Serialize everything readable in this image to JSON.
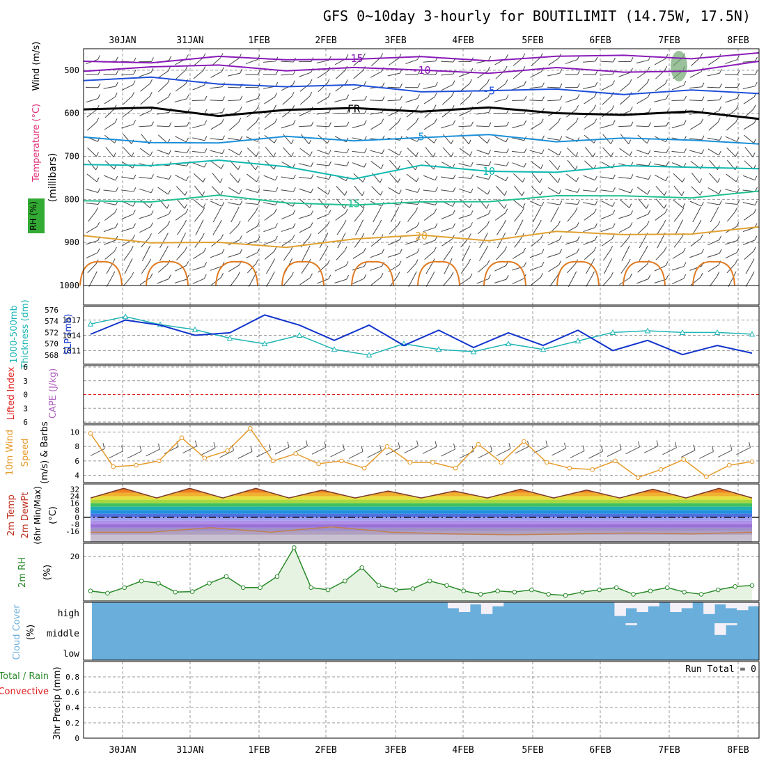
{
  "chart_data": {
    "type": "line",
    "title": "GFS 0~10day 3-hourly for BOUTILIMIT (14.75W, 17.5N)",
    "dates": [
      "30JAN",
      "31JAN",
      "1FEB",
      "2FEB",
      "3FEB",
      "4FEB",
      "5FEB",
      "6FEB",
      "7FEB",
      "8FEB"
    ],
    "colors": {
      "axis": "#000000",
      "grid": "#999999",
      "slp": "#1133cc",
      "thickness": "#1fb5b5",
      "wind": "#e69a2a",
      "rh": "#2a8a2a",
      "cloud": "#6aaedb",
      "lifted": "#e02020",
      "purple": "#8a1ab8"
    },
    "panels": {
      "upper": {
        "ylabel": "(millibars)",
        "labels": [
          "Wind (m/s)",
          "Temperature (°C)",
          "RH (%)"
        ],
        "yticks": [
          500,
          600,
          700,
          800,
          900,
          1000
        ],
        "ylim": [
          450,
          1000
        ],
        "isotherms": [
          {
            "label": "-15",
            "color": "#8a1ab8",
            "p": [
              479,
              478,
              474,
              472,
              473,
              474,
              472,
              470,
              468,
              467,
              465
            ]
          },
          {
            "label": "-10",
            "color": "#8a1ab8",
            "p": [
              497,
              493,
              492,
              495,
              498,
              500,
              502,
              500,
              501,
              500,
              485
            ]
          },
          {
            "label": "-5",
            "color": "#1f4fd8",
            "p": [
              518,
              522,
              530,
              535,
              540,
              545,
              548,
              548,
              550,
              550,
              555
            ]
          },
          {
            "label": "FR",
            "color": "#000000",
            "p": [
              590,
              592,
              600,
              595,
              590,
              590,
              592,
              598,
              600,
              602,
              608
            ]
          },
          {
            "label": "5",
            "color": "#1a8fd8",
            "p": [
              660,
              668,
              664,
              660,
              660,
              655,
              655,
              660,
              660,
              665,
              665
            ]
          },
          {
            "label": "10",
            "color": "#10b8b0",
            "p": [
              725,
              716,
              710,
              728,
              746,
              725,
              735,
              732,
              728,
              722,
              727
            ]
          },
          {
            "label": "15",
            "color": "#20c090",
            "p": [
              805,
              800,
              796,
              806,
              810,
              812,
              800,
              792,
              796,
              790,
              785
            ]
          },
          {
            "label": "20",
            "color": "#e0a030",
            "p": [
              880,
              900,
              905,
              905,
              895,
              885,
              890,
              880,
              880,
              877,
              870
            ]
          }
        ]
      },
      "slp": {
        "labels": [
          "SLP (mb)",
          "1000-500mb",
          "Thickness (dm)"
        ],
        "thickness_ticks": [
          568,
          570,
          572,
          574,
          576
        ],
        "slp_ticks": [
          1011,
          1014,
          1017
        ],
        "slp_range": [
          1009,
          1019
        ],
        "thickness_range": [
          567,
          576
        ],
        "slp": [
          1014.2,
          1017,
          1016,
          1014,
          1014.5,
          1018,
          1016,
          1013,
          1016,
          1012,
          1015,
          1011.6,
          1014.5,
          1012,
          1015,
          1011,
          1013,
          1010.2,
          1012,
          1010.5
        ],
        "thickness": [
          573.5,
          574.8,
          573.4,
          572.5,
          571,
          570,
          571.5,
          569,
          568,
          570,
          569,
          568.6,
          570,
          569,
          570.5,
          572,
          572.3,
          572,
          572,
          571.7
        ]
      },
      "cape": {
        "labels": [
          "Lifted Index",
          "CAPE (J/kg)"
        ],
        "yticks": [
          6,
          3,
          0,
          -3,
          -6
        ],
        "ylim": [
          -6,
          6
        ]
      },
      "wind10m": {
        "labels": [
          "10m Wind",
          "Speed",
          "(m/s) & Barbs"
        ],
        "yticks": [
          4,
          6,
          8,
          10
        ],
        "ylim": [
          3,
          11
        ],
        "speed": [
          9.8,
          5.2,
          5.4,
          6,
          9.2,
          6.4,
          7.4,
          10.5,
          6,
          7,
          5.6,
          6,
          5,
          8,
          5.8,
          5.8,
          5,
          8.3,
          5.8,
          8.7,
          5.8,
          5,
          4.8,
          6,
          3.7,
          4.8,
          6.2,
          3.8,
          5.4,
          5.9
        ]
      },
      "temp2m": {
        "labels": [
          "2m Temp",
          "2m DewPt",
          "(6hr Min/Max)",
          "(°C)"
        ],
        "yticks": [
          32,
          24,
          16,
          8,
          0,
          -8,
          -16
        ],
        "ylim": [
          -28,
          38
        ],
        "temp": [
          22,
          33,
          22,
          33,
          22,
          33,
          22,
          31,
          22,
          30,
          22,
          30,
          22,
          32,
          22,
          31,
          22,
          32,
          22,
          33,
          22
        ],
        "dewpt": [
          -17,
          -17,
          -12,
          -17,
          -11,
          -17,
          -19,
          -20,
          -19,
          -18,
          -19,
          -17
        ]
      },
      "rh2m": {
        "labels": [
          "2m RH",
          "(%)"
        ],
        "yticks": [
          20
        ],
        "ylim": [
          0,
          26
        ],
        "rh": [
          4.5,
          3.5,
          6,
          9,
          8,
          4,
          4.2,
          8,
          11,
          6,
          6,
          11,
          24,
          6,
          5,
          9,
          15,
          7,
          5,
          5.5,
          9,
          7,
          4.5,
          3,
          4.5,
          4,
          5,
          3,
          2.5,
          4,
          5,
          6,
          3,
          4.5,
          6,
          4,
          3,
          5,
          6.5,
          7
        ]
      },
      "cloud": {
        "labels": [
          "Cloud Cover",
          "(%)"
        ],
        "levels": [
          "high",
          "middle",
          "low"
        ],
        "high_clear": [
          0,
          0,
          0,
          0,
          0,
          0,
          0,
          0,
          0,
          0,
          0,
          0,
          0,
          0,
          0,
          0,
          0,
          0,
          0,
          0,
          0,
          0,
          0,
          0,
          0,
          0,
          0,
          0,
          0,
          0,
          0,
          0,
          0.3,
          0.5,
          0.1,
          0.6,
          0.2,
          0,
          0,
          0,
          0,
          0,
          0,
          0,
          0,
          0,
          0,
          0.7,
          0.3,
          0.5,
          0.2,
          0,
          0.5,
          0.3,
          0,
          0.6,
          0.1,
          0.3,
          0.4,
          0.2
        ],
        "mid_clear": [
          0,
          0,
          0,
          0,
          0,
          0,
          0,
          0,
          0,
          0,
          0,
          0,
          0,
          0,
          0,
          0,
          0,
          0,
          0,
          0,
          0,
          0,
          0,
          0,
          0,
          0,
          0,
          0,
          0,
          0,
          0,
          0,
          0,
          0,
          0,
          0,
          0,
          0,
          0,
          0,
          0,
          0,
          0,
          0,
          0,
          0,
          0,
          0,
          0.1,
          0,
          0,
          0,
          0,
          0,
          0,
          0,
          0.6,
          0.1,
          0,
          0
        ]
      },
      "precip": {
        "labels": [
          "3hr Precip (mm)",
          "Total / Rain",
          "Convective"
        ],
        "yticks": [
          0,
          0.2,
          0.4,
          0.6,
          0.8
        ],
        "ylim": [
          0,
          1
        ],
        "run_total": "Run Total = 0"
      }
    }
  }
}
